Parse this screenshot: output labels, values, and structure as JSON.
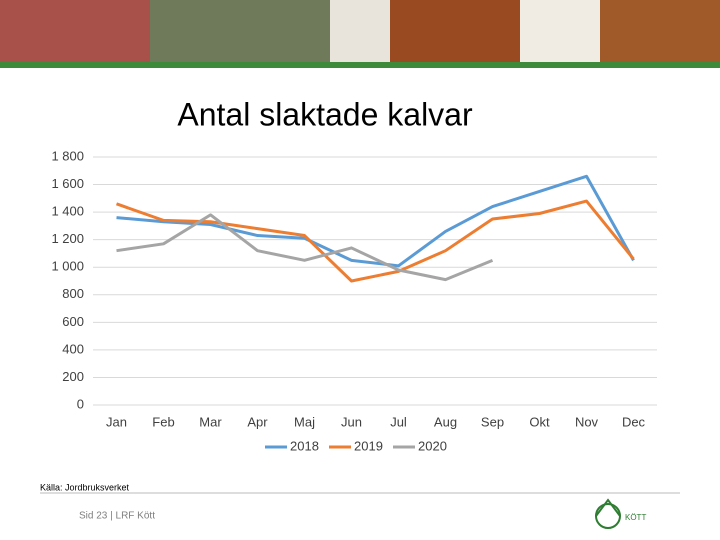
{
  "chart_data": {
    "type": "line",
    "title": "Antal slaktade kalvar",
    "categories": [
      "Jan",
      "Feb",
      "Mar",
      "Apr",
      "Maj",
      "Jun",
      "Jul",
      "Aug",
      "Sep",
      "Okt",
      "Nov",
      "Dec"
    ],
    "series": [
      {
        "name": "2018",
        "color": "#5b9bd5",
        "values": [
          1360,
          1330,
          1310,
          1230,
          1210,
          1050,
          1010,
          1260,
          1440,
          1550,
          1660,
          1050
        ]
      },
      {
        "name": "2019",
        "color": "#ed7d31",
        "values": [
          1460,
          1340,
          1330,
          1280,
          1230,
          900,
          970,
          1120,
          1350,
          1390,
          1480,
          1060
        ]
      },
      {
        "name": "2020",
        "color": "#a5a5a5",
        "values": [
          1120,
          1170,
          1380,
          1120,
          1050,
          1140,
          980,
          910,
          1050,
          null,
          null,
          null
        ]
      }
    ],
    "ylim": [
      0,
      1800
    ],
    "yticks": [
      0,
      200,
      400,
      600,
      800,
      {
        "value": 1000,
        "label": "1 000"
      },
      {
        "value": 1200,
        "label": "1 200"
      },
      {
        "value": 1400,
        "label": "1 400"
      },
      {
        "value": 1600,
        "label": "1 600"
      },
      {
        "value": 1800,
        "label": "1 800"
      }
    ],
    "grid": true,
    "legend": "bottom",
    "source": "Källa: Jordbruksverket",
    "footer": "Sid 23 | LRF Kött",
    "logo_text": "KÖTT"
  }
}
